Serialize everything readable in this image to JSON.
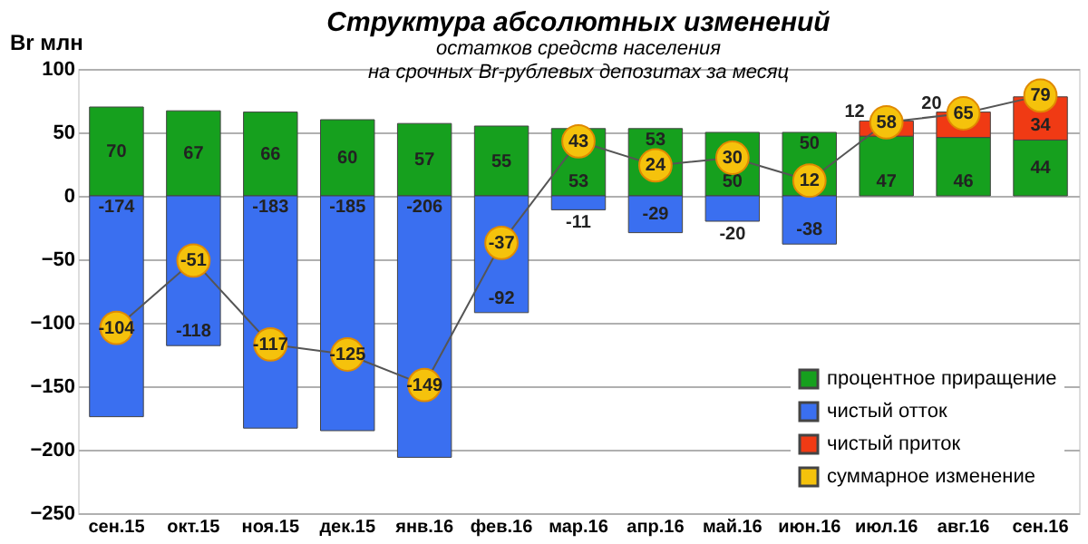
{
  "chart_data": {
    "type": "bar",
    "title": "Структура абсолютных изменений",
    "subtitle": "остатков средств населения\nна срочных Br-рублевых депозитах за месяц",
    "ylabel": "Br млн",
    "categories": [
      "сен.15",
      "окт.15",
      "ноя.15",
      "дек.15",
      "янв.16",
      "фев.16",
      "мар.16",
      "апр.16",
      "май.16",
      "июн.16",
      "июл.16",
      "авг.16",
      "сен.16"
    ],
    "stacked": true,
    "series": [
      {
        "name": "процентное приращение",
        "color": "#16a01e",
        "values": [
          70,
          67,
          66,
          60,
          57,
          55,
          53,
          53,
          50,
          50,
          47,
          46,
          44
        ]
      },
      {
        "name": "чистый отток",
        "color": "#3a6ff0",
        "values": [
          -174,
          -118,
          -183,
          -185,
          -206,
          -92,
          -11,
          -29,
          -20,
          -38,
          null,
          null,
          null
        ]
      },
      {
        "name": "чистый приток",
        "color": "#f03a14",
        "values": [
          null,
          null,
          null,
          null,
          null,
          null,
          null,
          null,
          null,
          null,
          12,
          20,
          34
        ]
      },
      {
        "name": "суммарное изменение",
        "type": "line",
        "color": "#f5c20c",
        "marker": "circle",
        "values": [
          -104,
          -51,
          -117,
          -125,
          -149,
          -37,
          43,
          24,
          30,
          12,
          58,
          65,
          79
        ]
      }
    ],
    "ylim": [
      -250,
      100
    ],
    "yticks": [
      -250,
      -200,
      -150,
      -100,
      -50,
      0,
      50,
      100
    ],
    "grid": "y",
    "legend": "bottom right",
    "data_labels": true
  }
}
